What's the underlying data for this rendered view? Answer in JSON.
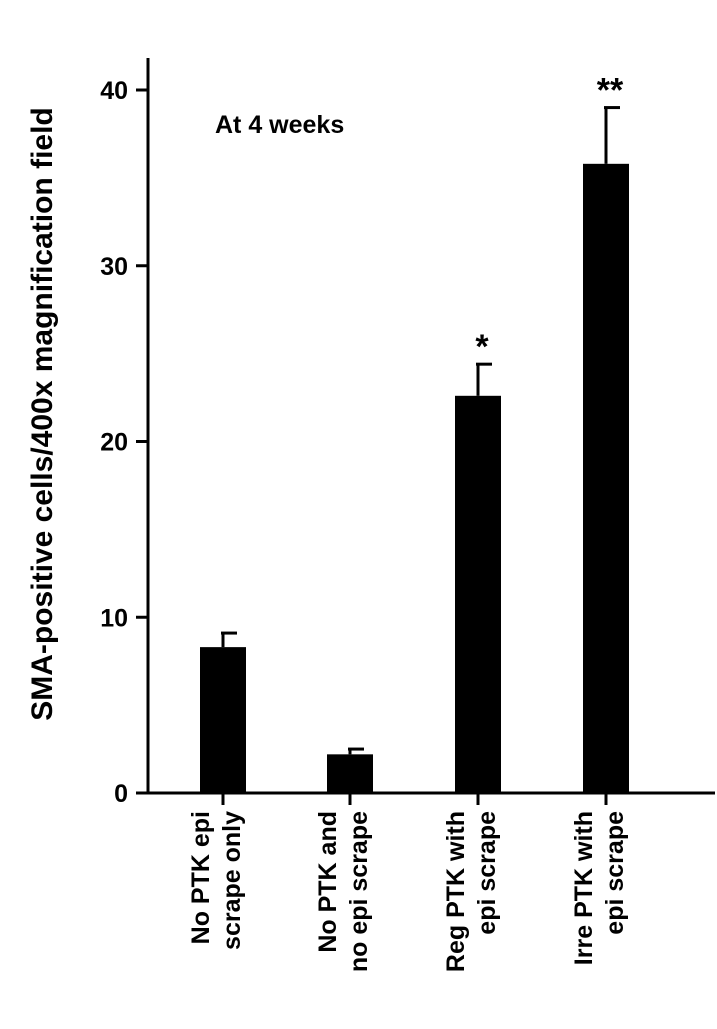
{
  "chart_data": {
    "type": "bar",
    "title": "",
    "ylabel": "SMA-positive cells/400x magnification field",
    "xlabel": "",
    "annotation": "At 4 weeks",
    "ylim": [
      0,
      42
    ],
    "yticks": [
      "0",
      "10",
      "20",
      "30",
      "40"
    ],
    "categories": [
      [
        "No PTK epi",
        "scrape only"
      ],
      [
        "No PTK and",
        "no epi scrape"
      ],
      [
        "Reg PTK with",
        "epi scrape"
      ],
      [
        "Irre PTK with",
        "epi scrape"
      ]
    ],
    "values": [
      8.3,
      2.2,
      22.6,
      35.8
    ],
    "errors": [
      0.8,
      0.3,
      1.8,
      3.2
    ],
    "significance": [
      "",
      "",
      "*",
      "**"
    ],
    "bar_color": "#000000",
    "grid": false,
    "legend": "none"
  }
}
